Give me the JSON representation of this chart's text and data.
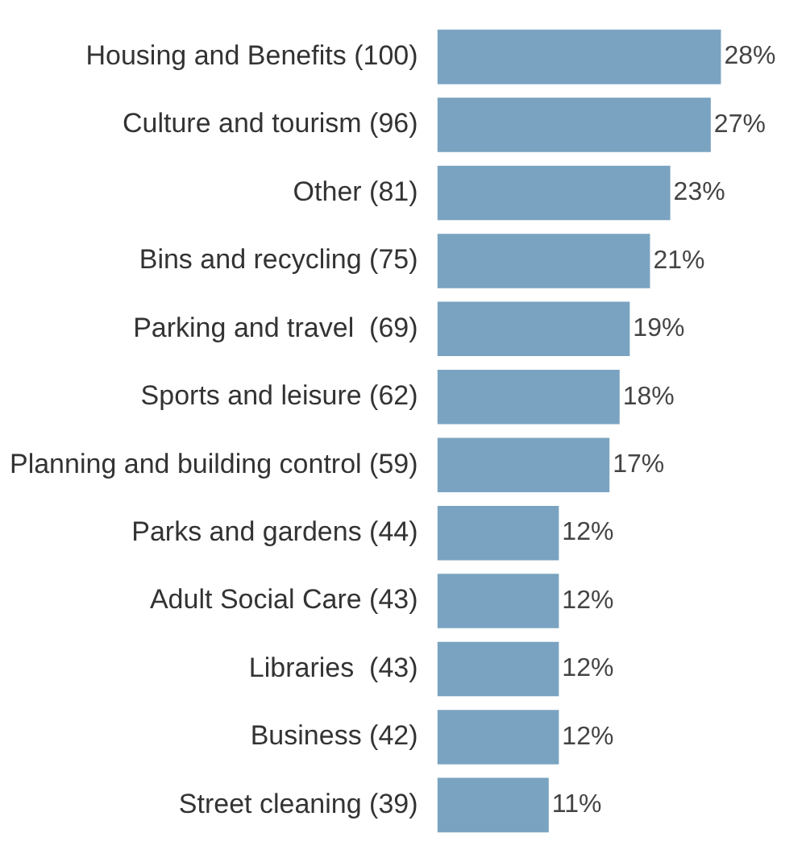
{
  "chart_data": {
    "type": "bar",
    "orientation": "horizontal",
    "categories": [
      "Housing and Benefits (100)",
      "Culture and tourism (96)",
      "Other (81)",
      "Bins and recycling (75)",
      "Parking and travel  (69)",
      "Sports and leisure (62)",
      "Planning and building control (59)",
      "Parks and gardens (44)",
      "Adult Social Care (43)",
      "Libraries  (43)",
      "Business (42)",
      "Street cleaning (39)"
    ],
    "values": [
      28,
      27,
      23,
      21,
      19,
      18,
      17,
      12,
      12,
      12,
      12,
      11
    ],
    "value_labels": [
      "28%",
      "27%",
      "23%",
      "21%",
      "19%",
      "18%",
      "17%",
      "12%",
      "12%",
      "12%",
      "12%",
      "11%"
    ],
    "color": "#7aa3c1",
    "legend": false
  }
}
